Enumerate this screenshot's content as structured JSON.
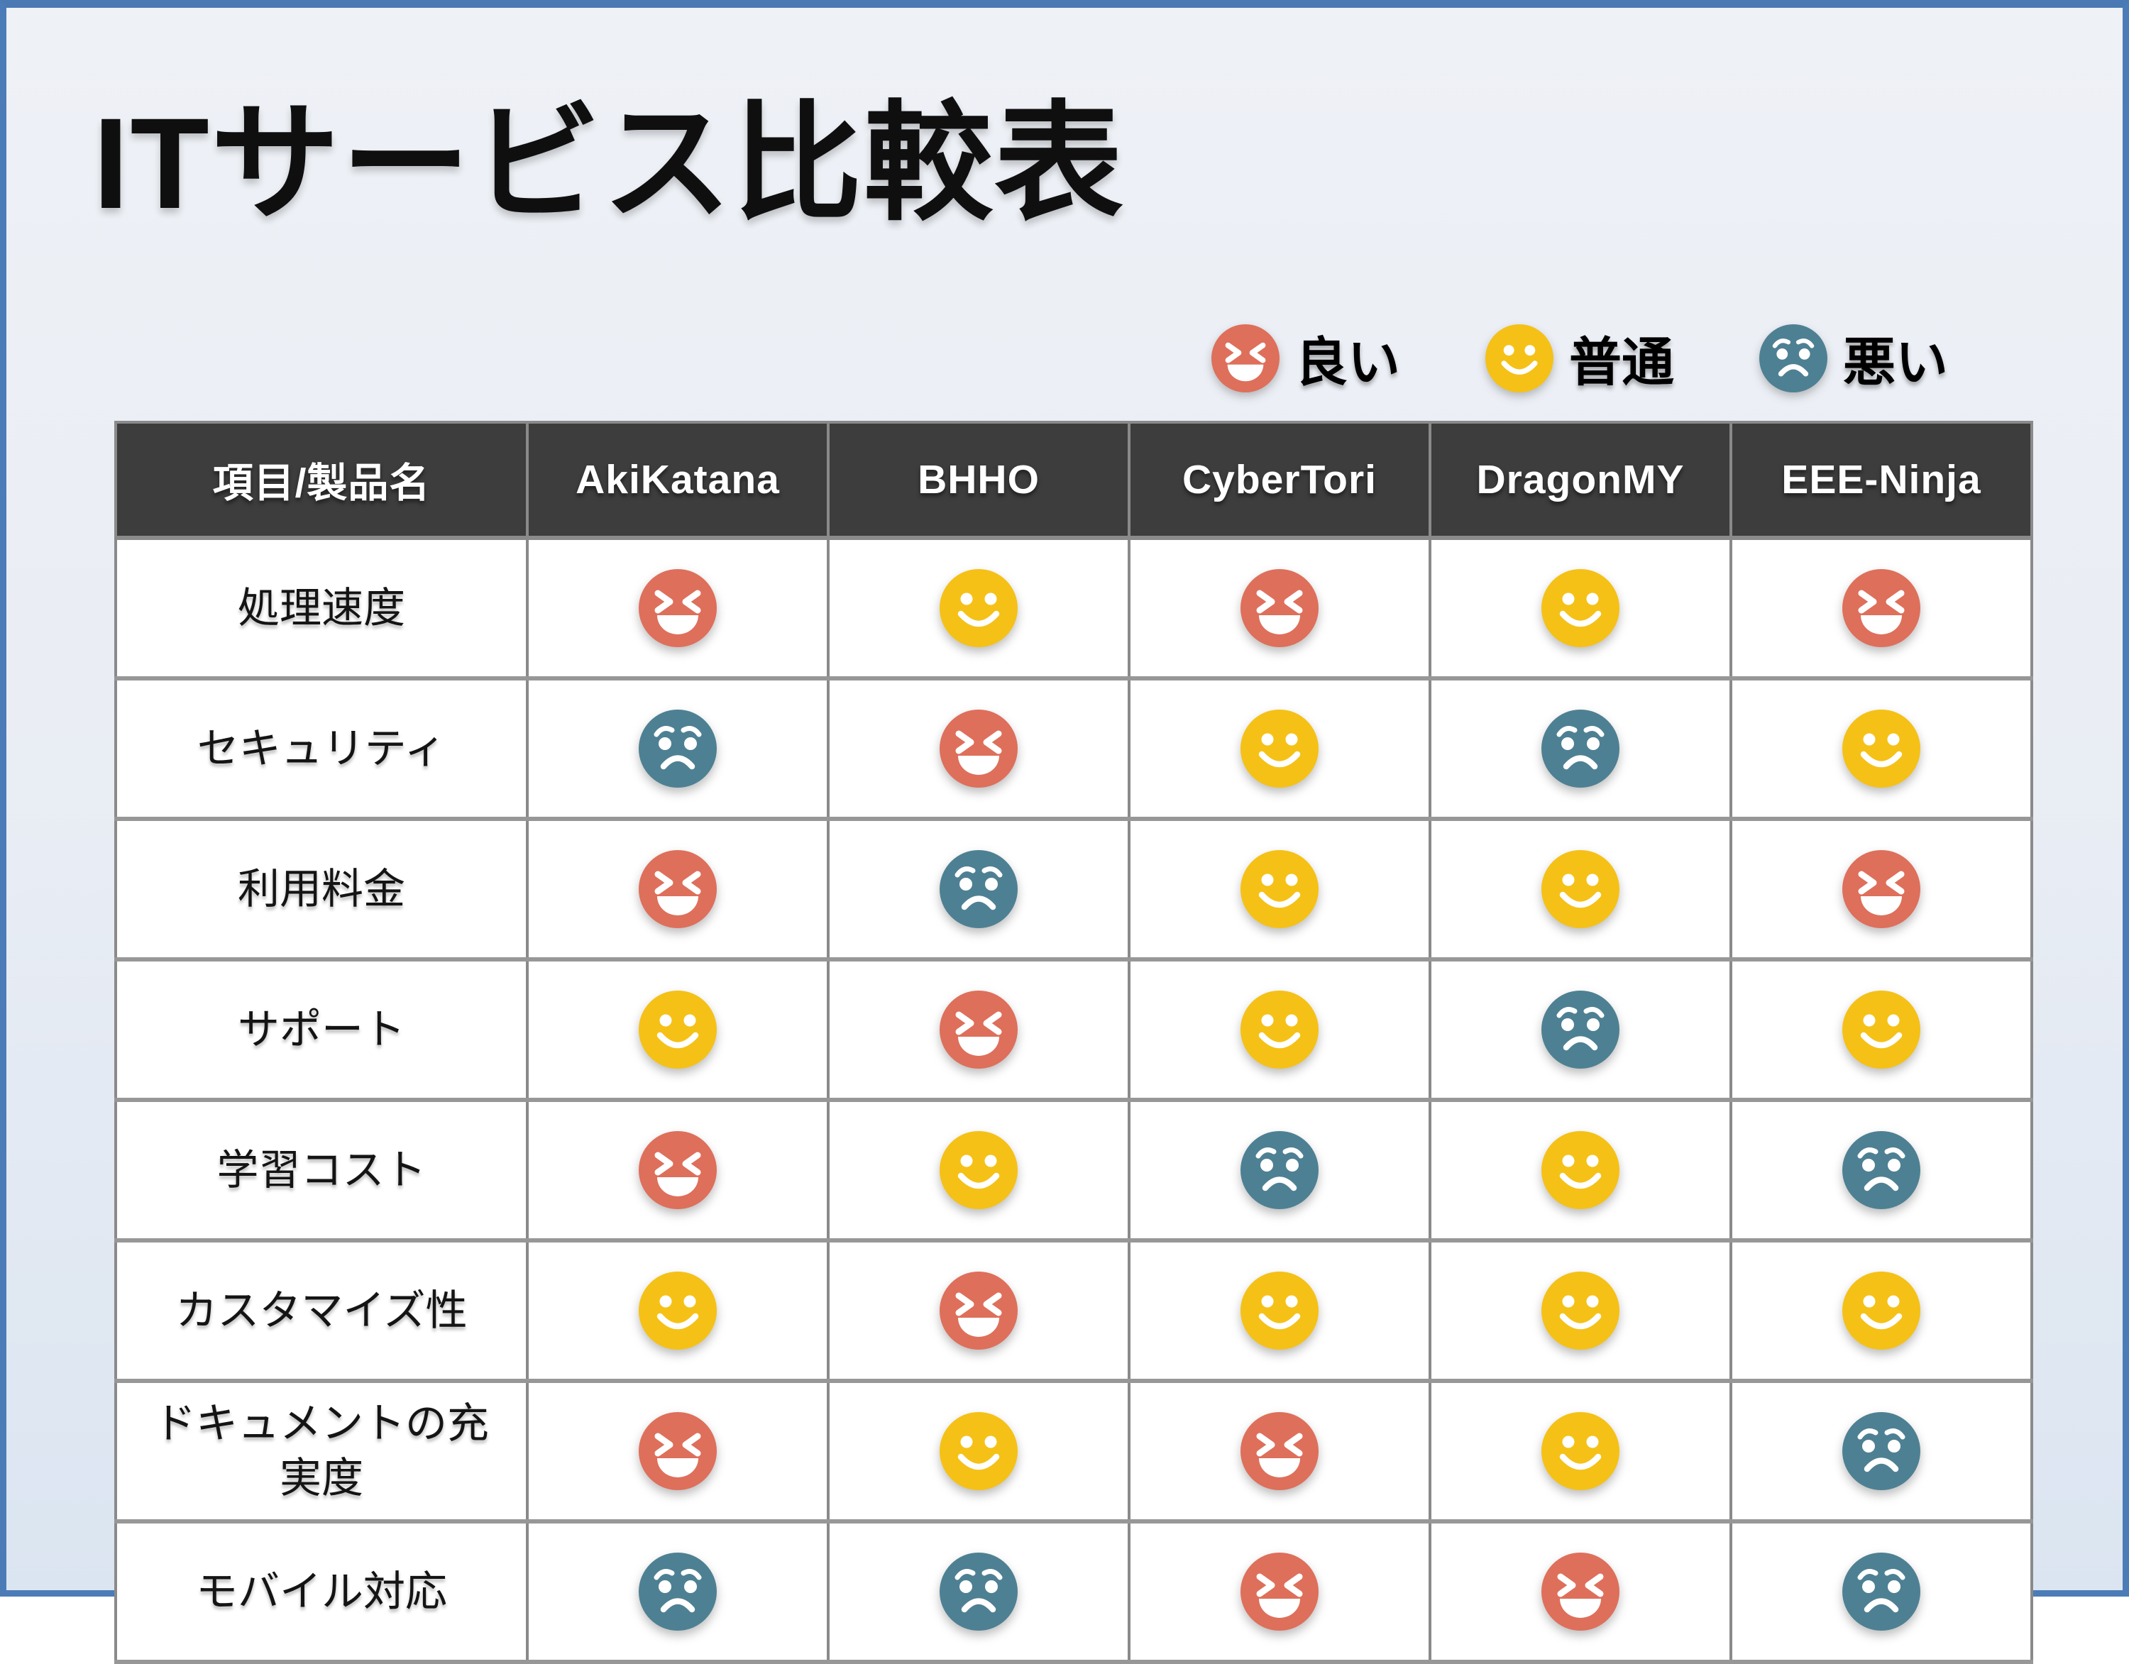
{
  "title": "ITサービス比較表",
  "legend": {
    "items": [
      {
        "value": "good",
        "label": "良い"
      },
      {
        "value": "normal",
        "label": "普通"
      },
      {
        "value": "bad",
        "label": "悪い"
      }
    ]
  },
  "chart_data": {
    "type": "table",
    "title": "ITサービス比較表",
    "columns": [
      "項目/製品名",
      "AkiKatana",
      "BHHO",
      "CyberTori",
      "DragonMY",
      "EEE-Ninja"
    ],
    "rows": [
      {
        "label": "処理速度",
        "ratings": [
          "good",
          "normal",
          "good",
          "normal",
          "good"
        ]
      },
      {
        "label": "セキュリティ",
        "ratings": [
          "bad",
          "good",
          "normal",
          "bad",
          "normal"
        ]
      },
      {
        "label": "利用料金",
        "ratings": [
          "good",
          "bad",
          "normal",
          "normal",
          "good"
        ]
      },
      {
        "label": "サポート",
        "ratings": [
          "normal",
          "good",
          "normal",
          "bad",
          "normal"
        ]
      },
      {
        "label": "学習コスト",
        "ratings": [
          "good",
          "normal",
          "bad",
          "normal",
          "bad"
        ]
      },
      {
        "label": "カスタマイズ性",
        "ratings": [
          "normal",
          "good",
          "normal",
          "normal",
          "normal"
        ]
      },
      {
        "label": "ドキュメントの充実度",
        "ratings": [
          "good",
          "normal",
          "good",
          "normal",
          "bad"
        ]
      },
      {
        "label": "モバイル対応",
        "ratings": [
          "bad",
          "bad",
          "good",
          "good",
          "bad"
        ]
      }
    ],
    "rating_legend": {
      "good": "良い",
      "normal": "普通",
      "bad": "悪い"
    },
    "legend_position": "top-right"
  },
  "colors": {
    "good": "#DE6F5B",
    "normal": "#F5C116",
    "bad": "#4E8093",
    "face_features": "#FFFFFF",
    "header_bg": "#3D3D3D",
    "header_text": "#FFFFFF",
    "cell_bg": "#FFFFFF",
    "grid_line": "#8A8A8A",
    "slide_border": "#4C7CB8",
    "title_text": "#0F0F0F"
  }
}
